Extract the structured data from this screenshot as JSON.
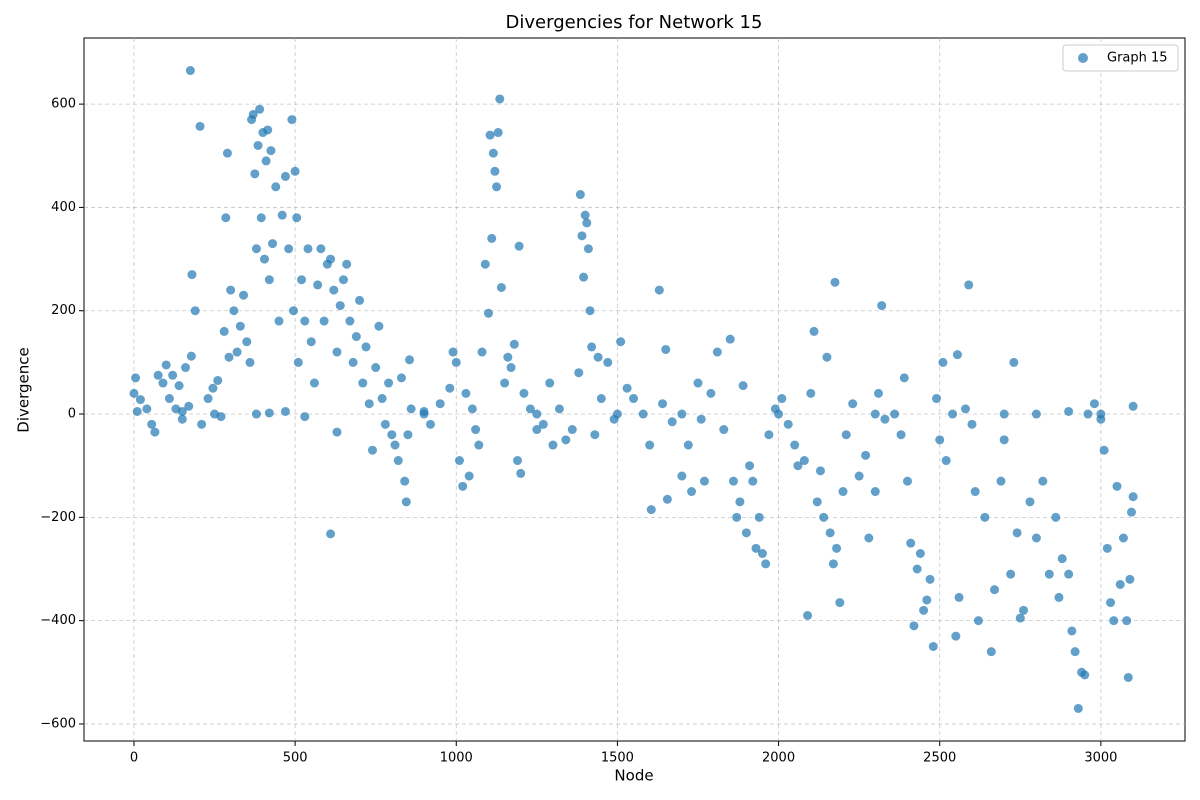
{
  "chart_data": {
    "type": "scatter",
    "title": "Divergencies for Network 15",
    "x_label": "Node",
    "y_label": "Divergence",
    "xlim": [
      -155,
      3261
    ],
    "ylim": [
      -633,
      728
    ],
    "xticks": [
      0,
      500,
      1000,
      1500,
      2000,
      2500,
      3000
    ],
    "yticks": [
      {
        "value": -600,
        "label": "−600"
      },
      {
        "value": -400,
        "label": "−400"
      },
      {
        "value": -200,
        "label": "−200"
      },
      0,
      200,
      400,
      600
    ],
    "grid": true,
    "legend": "upper right",
    "x": [
      0,
      5,
      10,
      20,
      40,
      55,
      65,
      75,
      90,
      100,
      110,
      120,
      130,
      140,
      150,
      160,
      170,
      175,
      178,
      180,
      190,
      205,
      210,
      230,
      245,
      260,
      270,
      280,
      285,
      290,
      295,
      300,
      310,
      320,
      330,
      340,
      350,
      360,
      365,
      370,
      375,
      380,
      385,
      390,
      395,
      400,
      405,
      410,
      415,
      420,
      425,
      430,
      440,
      450,
      460,
      470,
      480,
      490,
      495,
      500,
      505,
      510,
      520,
      530,
      540,
      550,
      560,
      570,
      580,
      590,
      600,
      610,
      620,
      630,
      640,
      650,
      660,
      670,
      680,
      690,
      700,
      710,
      720,
      730,
      740,
      750,
      760,
      770,
      780,
      790,
      800,
      810,
      820,
      830,
      840,
      845,
      850,
      855,
      860,
      610,
      630,
      380,
      420,
      470,
      530,
      900,
      920,
      950,
      980,
      990,
      1000,
      1010,
      1020,
      1030,
      1040,
      1050,
      1060,
      1070,
      1080,
      1090,
      1100,
      1105,
      1110,
      1115,
      1120,
      1125,
      1130,
      1135,
      1140,
      1150,
      1160,
      1170,
      1180,
      1190,
      1195,
      1200,
      1210,
      1230,
      1250,
      1270,
      1290,
      1300,
      1320,
      1340,
      1360,
      1380,
      1385,
      1390,
      1395,
      1400,
      1405,
      1410,
      1415,
      1420,
      1430,
      1440,
      1450,
      1470,
      1490,
      1510,
      1530,
      1550,
      1580,
      1600,
      1605,
      1630,
      1640,
      1650,
      1655,
      1670,
      1700,
      1720,
      1730,
      1750,
      1760,
      1770,
      1790,
      1810,
      1830,
      1850,
      1860,
      1870,
      1880,
      1890,
      1900,
      1910,
      1920,
      1930,
      1940,
      1950,
      1960,
      1970,
      1990,
      2010,
      2030,
      2050,
      2060,
      2080,
      2090,
      2100,
      2110,
      2120,
      2130,
      2140,
      2150,
      2160,
      2170,
      2175,
      2180,
      2190,
      2200,
      2210,
      2230,
      2250,
      2270,
      2280,
      2300,
      2310,
      2320,
      2330,
      2360,
      2380,
      2390,
      2400,
      2410,
      2420,
      2430,
      2440,
      2450,
      2460,
      2470,
      2480,
      2490,
      2500,
      2510,
      2520,
      2540,
      2550,
      2555,
      2560,
      2580,
      2590,
      2600,
      2610,
      2620,
      2640,
      2660,
      2670,
      2690,
      2700,
      2720,
      2730,
      2740,
      2750,
      2760,
      2780,
      2800,
      2820,
      2840,
      2860,
      2870,
      2880,
      2900,
      2910,
      2920,
      2930,
      2940,
      2950,
      2960,
      2980,
      3000,
      3010,
      3020,
      3030,
      3040,
      3050,
      3060,
      3070,
      3080,
      3085,
      3090,
      3095,
      3100,
      3100,
      150,
      250,
      900,
      1250,
      1500,
      1700,
      2000,
      2300,
      2700,
      2800,
      3000,
      2900
    ],
    "series": [
      {
        "name": "Graph 15",
        "color": "#1f77b4",
        "values": [
          40,
          70,
          5,
          28,
          10,
          -20,
          -35,
          75,
          60,
          95,
          30,
          75,
          10,
          55,
          -10,
          90,
          15,
          665,
          112,
          270,
          200,
          557,
          -20,
          30,
          50,
          65,
          -5,
          160,
          380,
          505,
          110,
          240,
          200,
          120,
          170,
          230,
          140,
          100,
          570,
          580,
          465,
          320,
          520,
          590,
          380,
          545,
          300,
          490,
          550,
          260,
          510,
          330,
          440,
          180,
          385,
          460,
          320,
          570,
          200,
          470,
          380,
          100,
          260,
          180,
          320,
          140,
          60,
          250,
          320,
          180,
          290,
          300,
          240,
          120,
          210,
          260,
          290,
          180,
          100,
          150,
          220,
          60,
          130,
          20,
          -70,
          90,
          170,
          30,
          -20,
          60,
          -40,
          -60,
          -90,
          70,
          -130,
          -170,
          -40,
          105,
          10,
          -232,
          -35,
          0,
          2,
          5,
          -5,
          5,
          -20,
          20,
          50,
          120,
          100,
          -90,
          -140,
          40,
          -120,
          10,
          -30,
          -60,
          120,
          290,
          195,
          540,
          340,
          505,
          470,
          440,
          545,
          610,
          245,
          60,
          110,
          90,
          135,
          -90,
          325,
          -115,
          40,
          10,
          -30,
          -20,
          60,
          -60,
          10,
          -50,
          -30,
          80,
          425,
          345,
          265,
          385,
          370,
          320,
          200,
          130,
          -40,
          110,
          30,
          100,
          -10,
          140,
          50,
          30,
          0,
          -60,
          -185,
          240,
          20,
          125,
          -165,
          -15,
          -120,
          -60,
          -150,
          60,
          -10,
          -130,
          40,
          120,
          -30,
          145,
          -130,
          -200,
          -170,
          55,
          -230,
          -100,
          -130,
          -260,
          -200,
          -270,
          -290,
          -40,
          10,
          30,
          -20,
          -60,
          -100,
          -90,
          -390,
          40,
          160,
          -170,
          -110,
          -200,
          110,
          -230,
          -290,
          255,
          -260,
          -365,
          -150,
          -40,
          20,
          -120,
          -80,
          -240,
          -150,
          40,
          210,
          -10,
          0,
          -40,
          70,
          -130,
          -250,
          -410,
          -300,
          -270,
          -380,
          -360,
          -320,
          -450,
          30,
          -50,
          100,
          -90,
          0,
          -430,
          115,
          -355,
          10,
          250,
          -20,
          -150,
          -400,
          -200,
          -460,
          -340,
          -130,
          -50,
          -310,
          100,
          -230,
          -395,
          -380,
          -170,
          -240,
          -130,
          -310,
          -200,
          -355,
          -280,
          -310,
          -420,
          -460,
          -570,
          -500,
          -505,
          0,
          20,
          -10,
          -70,
          -260,
          -365,
          -400,
          -140,
          -330,
          -240,
          -400,
          -510,
          -320,
          -190,
          -160,
          15,
          5,
          0,
          0,
          0,
          0,
          0,
          0,
          0,
          0,
          0,
          0,
          5
        ]
      }
    ]
  }
}
